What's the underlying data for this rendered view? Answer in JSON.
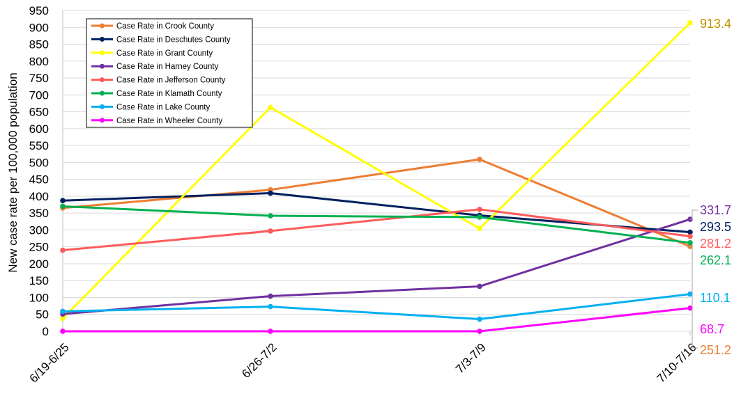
{
  "chart_data": {
    "type": "line",
    "ylabel": "New case rate per 100,000 population",
    "categories": [
      "6/19-6/25",
      "6/26-7/2",
      "7/3-7/9",
      "7/10-7/16"
    ],
    "ylim": [
      0,
      950
    ],
    "yticks": [
      0,
      50,
      100,
      150,
      200,
      250,
      300,
      350,
      400,
      450,
      500,
      550,
      600,
      650,
      700,
      750,
      800,
      850,
      900,
      950
    ],
    "grid": true,
    "legend_position": "top-left",
    "series": [
      {
        "name": "Case Rate in Crook County",
        "color": "#ED7D31",
        "values": [
          365,
          419,
          509,
          251.2
        ],
        "end_label": "251.2"
      },
      {
        "name": "Case Rate in Deschutes County",
        "color": "#002060",
        "values": [
          387,
          409,
          343,
          293.5
        ],
        "end_label": "293.5"
      },
      {
        "name": "Case Rate in Grant County",
        "color": "#FFFF00",
        "values": [
          38,
          663,
          304,
          913.4
        ],
        "end_label": "913.4",
        "end_label_color": "#BF9000"
      },
      {
        "name": "Case Rate in Harney County",
        "color": "#7030A0",
        "values": [
          51,
          104,
          133,
          331.7
        ],
        "end_label": "331.7"
      },
      {
        "name": "Case Rate in Jefferson County",
        "color": "#FF5B5B",
        "values": [
          240,
          297,
          361,
          281.2
        ],
        "end_label": "281.2"
      },
      {
        "name": "Case Rate in Klamath County",
        "color": "#00B050",
        "values": [
          370,
          342,
          338,
          262.1
        ],
        "end_label": "262.1"
      },
      {
        "name": "Case Rate in Lake County",
        "color": "#00B0F0",
        "values": [
          59,
          73,
          36,
          110.1
        ],
        "end_label": "110.1"
      },
      {
        "name": "Case Rate in Wheeler County",
        "color": "#FF00FF",
        "values": [
          0,
          0,
          0,
          68.7
        ],
        "end_label": "68.7"
      }
    ]
  }
}
